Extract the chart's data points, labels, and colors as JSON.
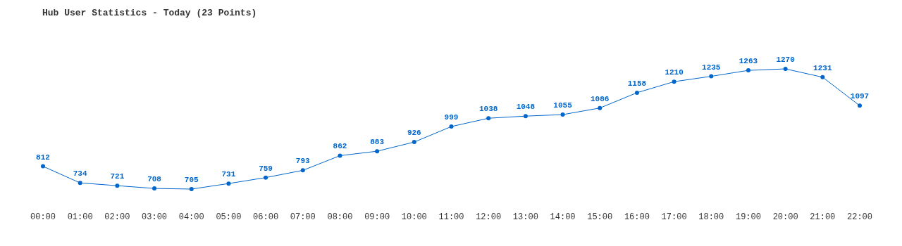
{
  "chart_data": {
    "type": "line",
    "title": "Hub User Statistics - Today (23 Points)",
    "categories": [
      "00:00",
      "01:00",
      "02:00",
      "03:00",
      "04:00",
      "05:00",
      "06:00",
      "07:00",
      "08:00",
      "09:00",
      "10:00",
      "11:00",
      "12:00",
      "13:00",
      "14:00",
      "15:00",
      "16:00",
      "17:00",
      "18:00",
      "19:00",
      "20:00",
      "21:00",
      "22:00"
    ],
    "series": [
      {
        "color": "#0066cc",
        "values": [
          812,
          734,
          721,
          708,
          705,
          731,
          759,
          793,
          862,
          883,
          926,
          999,
          1038,
          1048,
          1055,
          1086,
          1158,
          1210,
          1235,
          1263,
          1270,
          1231,
          1097
        ]
      }
    ],
    "data_labels": true,
    "marker": "circle",
    "line_style": "solid"
  }
}
